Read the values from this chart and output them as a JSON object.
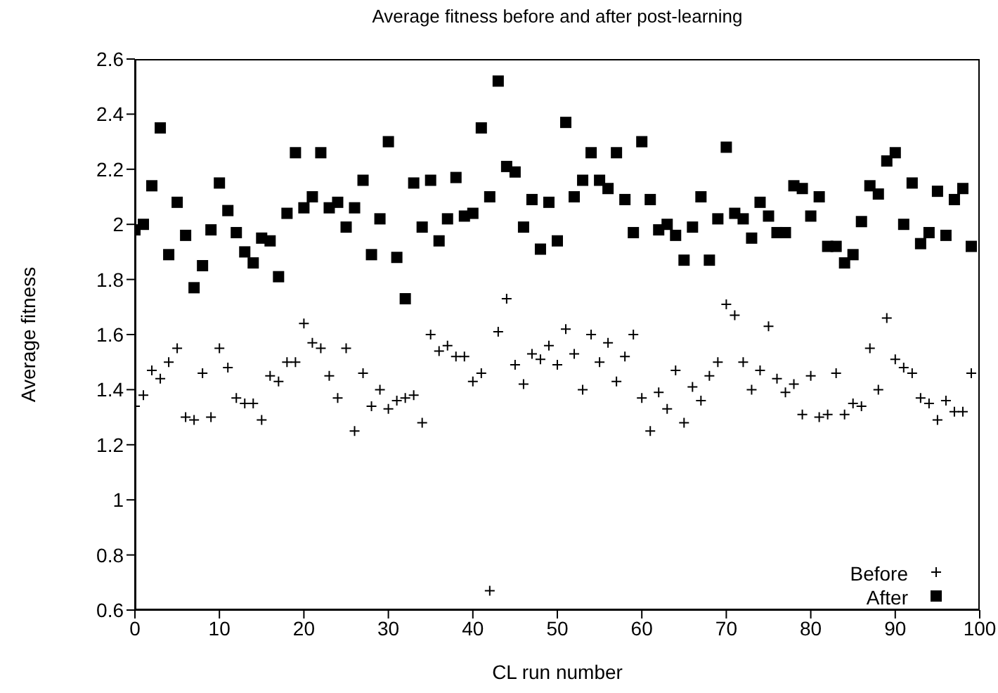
{
  "chart_data": {
    "type": "scatter",
    "title": "Average fitness before and after post-learning",
    "xlabel": "CL run number",
    "ylabel": "Average fitness",
    "x": [
      0,
      1,
      2,
      3,
      4,
      5,
      6,
      7,
      8,
      9,
      10,
      11,
      12,
      13,
      14,
      15,
      16,
      17,
      18,
      19,
      20,
      21,
      22,
      23,
      24,
      25,
      26,
      27,
      28,
      29,
      30,
      31,
      32,
      33,
      34,
      35,
      36,
      37,
      38,
      39,
      40,
      41,
      42,
      43,
      44,
      45,
      46,
      47,
      48,
      49,
      50,
      51,
      52,
      53,
      54,
      55,
      56,
      57,
      58,
      59,
      60,
      61,
      62,
      63,
      64,
      65,
      66,
      67,
      68,
      69,
      70,
      71,
      72,
      73,
      74,
      75,
      76,
      77,
      78,
      79,
      80,
      81,
      82,
      83,
      84,
      85,
      86,
      87,
      88,
      89,
      90,
      91,
      92,
      93,
      94,
      95,
      96,
      97,
      98,
      99
    ],
    "series": [
      {
        "name": "Before",
        "color": "#000000",
        "marker": "cross",
        "values": [
          1.34,
          1.38,
          1.47,
          1.44,
          1.5,
          1.55,
          1.3,
          1.29,
          1.46,
          1.3,
          1.55,
          1.48,
          1.37,
          1.35,
          1.35,
          1.29,
          1.45,
          1.43,
          1.5,
          1.5,
          1.64,
          1.57,
          1.55,
          1.45,
          1.37,
          1.55,
          1.25,
          1.46,
          1.34,
          1.4,
          1.33,
          1.36,
          1.37,
          1.38,
          1.28,
          1.6,
          1.54,
          1.56,
          1.52,
          1.52,
          1.43,
          1.46,
          0.67,
          1.61,
          1.73,
          1.49,
          1.42,
          1.53,
          1.51,
          1.56,
          1.49,
          1.62,
          1.53,
          1.4,
          1.6,
          1.5,
          1.57,
          1.43,
          1.52,
          1.6,
          1.37,
          1.25,
          1.39,
          1.33,
          1.47,
          1.28,
          1.41,
          1.36,
          1.45,
          1.5,
          1.71,
          1.67,
          1.5,
          1.4,
          1.47,
          1.63,
          1.44,
          1.39,
          1.42,
          1.31,
          1.45,
          1.3,
          1.31,
          1.46,
          1.31,
          1.35,
          1.34,
          1.55,
          1.4,
          1.66,
          1.51,
          1.48,
          1.46,
          1.37,
          1.35,
          1.29,
          1.36,
          1.32,
          1.32,
          1.46
        ]
      },
      {
        "name": "After",
        "color": "#000000",
        "marker": "square",
        "values": [
          1.98,
          2.0,
          2.14,
          2.35,
          1.89,
          2.08,
          1.96,
          1.77,
          1.85,
          1.98,
          2.15,
          2.05,
          1.97,
          1.9,
          1.86,
          1.95,
          1.94,
          1.81,
          2.04,
          2.26,
          2.06,
          2.1,
          2.26,
          2.06,
          2.08,
          1.99,
          2.06,
          2.16,
          1.89,
          2.02,
          2.3,
          1.88,
          1.73,
          2.15,
          1.99,
          2.16,
          1.94,
          2.02,
          2.17,
          2.03,
          2.04,
          2.35,
          2.1,
          2.52,
          2.21,
          2.19,
          1.99,
          2.09,
          1.91,
          2.08,
          1.94,
          2.37,
          2.1,
          2.16,
          2.26,
          2.16,
          2.13,
          2.26,
          2.09,
          1.97,
          2.3,
          2.09,
          1.98,
          2.0,
          1.96,
          1.87,
          1.99,
          2.1,
          1.87,
          2.02,
          2.28,
          2.04,
          2.02,
          1.95,
          2.08,
          2.03,
          1.97,
          1.97,
          2.14,
          2.13,
          2.03,
          2.1,
          1.92,
          1.92,
          1.86,
          1.89,
          2.01,
          2.14,
          2.11,
          2.23,
          2.26,
          2.0,
          2.15,
          1.93,
          1.97,
          2.12,
          1.96,
          2.09,
          2.13,
          1.92
        ]
      }
    ],
    "xlim": [
      0,
      100
    ],
    "xticks": [
      0,
      10,
      20,
      30,
      40,
      50,
      60,
      70,
      80,
      90,
      100
    ],
    "ylim": [
      0.6,
      2.6
    ],
    "yticks": [
      0.6,
      0.8,
      1,
      1.2,
      1.4,
      1.6,
      1.8,
      2,
      2.2,
      2.4,
      2.6
    ],
    "legend": "bottom right",
    "grid": false
  }
}
